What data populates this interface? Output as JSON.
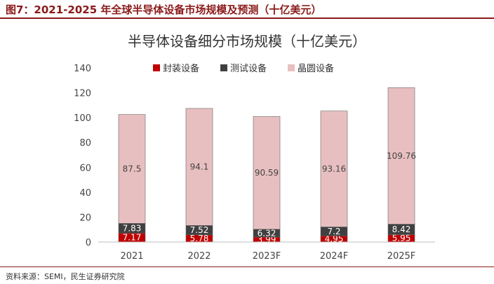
{
  "figure_title": "图7：2021-2025 年全球半导体设备市场规模及预测（十亿美元）",
  "source_note": "资料来源：SEMI，民生证券研究院",
  "colors": {
    "packaging": "#c00000",
    "testing": "#404040",
    "wafer": "#e8bfc0",
    "title_red": "#8b1a1a"
  },
  "chart_data": {
    "type": "bar",
    "stacked": true,
    "title": "半导体设备细分市场规模（十亿美元）",
    "xlabel": "",
    "ylabel": "",
    "categories": [
      "2021",
      "2022",
      "2023F",
      "2024F",
      "2025F"
    ],
    "series": [
      {
        "name": "封装设备",
        "values": [
          7.17,
          5.78,
          3.99,
          4.95,
          5.95
        ]
      },
      {
        "name": "测试设备",
        "values": [
          7.83,
          7.52,
          6.32,
          7.2,
          8.42
        ]
      },
      {
        "name": "晶圆设备",
        "values": [
          87.5,
          94.1,
          90.59,
          93.16,
          109.76
        ]
      }
    ],
    "value_labels": [
      [
        "7.17",
        "5.78",
        "3.99",
        "4.95",
        "5.95"
      ],
      [
        "7.83",
        "7.52",
        "6.32",
        "7.2",
        "8.42"
      ],
      [
        "87.5",
        "94.1",
        "90.59",
        "93.16",
        "109.76"
      ]
    ],
    "ylim": [
      0,
      140
    ],
    "yticks": [
      "0",
      "20",
      "40",
      "60",
      "80",
      "100",
      "120",
      "140"
    ],
    "legend_position": "top"
  }
}
